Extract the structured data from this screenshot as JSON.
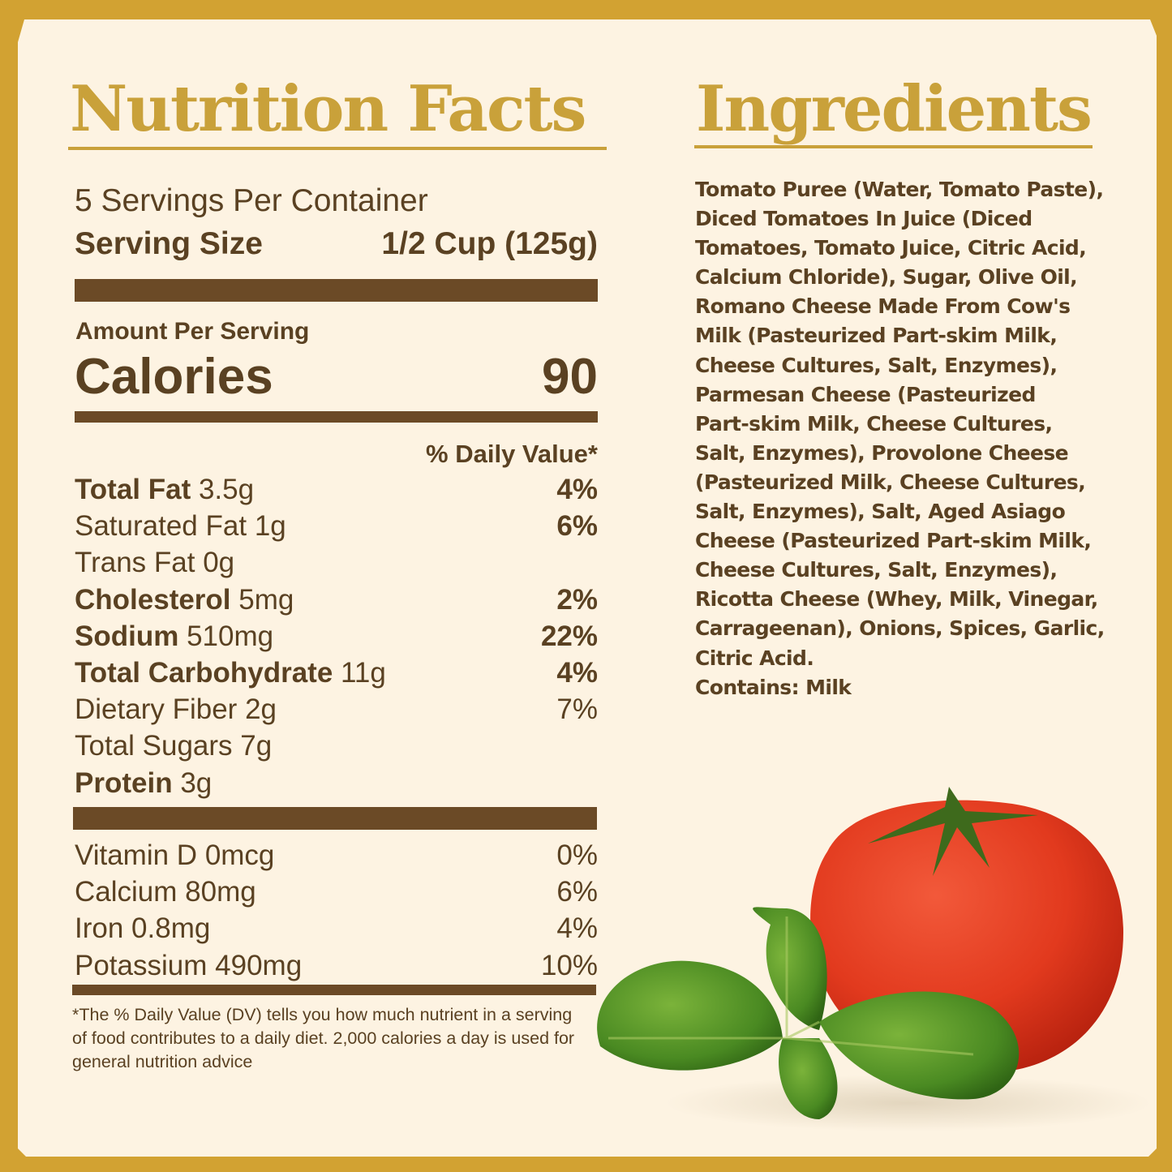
{
  "colors": {
    "frame": "#d2a232",
    "background": "#fdf3e2",
    "title": "#c9a13a",
    "text": "#5a4122",
    "bars": "#6b4a26"
  },
  "nutrition": {
    "title": "Nutrition Facts",
    "servings": "5 Servings Per Container",
    "serving_size_label": "Serving Size",
    "serving_size_value": "1/2 Cup (125g)",
    "amount_per_serving": "Amount Per Serving",
    "calories_label": "Calories",
    "calories_value": "90",
    "dv_header": "% Daily Value*",
    "rows": [
      {
        "name": "Total Fat",
        "amount": "3.5g",
        "dv": "4%",
        "bold": true
      },
      {
        "name": "Saturated Fat",
        "amount": "1g",
        "dv": "6%",
        "bold": false,
        "dv_bold": true
      },
      {
        "name": "Trans Fat",
        "amount": "0g",
        "dv": "",
        "bold": false
      },
      {
        "name": "Cholesterol",
        "amount": "5mg",
        "dv": "2%",
        "bold": true
      },
      {
        "name": "Sodium",
        "amount": "510mg",
        "dv": "22%",
        "bold": true
      },
      {
        "name": "Total Carbohydrate",
        "amount": "11g",
        "dv": "4%",
        "bold": true
      },
      {
        "name": "Dietary Fiber",
        "amount": "2g",
        "dv": "7%",
        "bold": false
      },
      {
        "name": "Total Sugars",
        "amount": "7g",
        "dv": "",
        "bold": false
      },
      {
        "name": "Protein",
        "amount": "3g",
        "dv": "",
        "bold": true
      }
    ],
    "vitamins": [
      {
        "name": "Vitamin D",
        "amount": "0mcg",
        "dv": "0%"
      },
      {
        "name": "Calcium",
        "amount": "80mg",
        "dv": "6%"
      },
      {
        "name": "Iron",
        "amount": "0.8mg",
        "dv": "4%"
      },
      {
        "name": "Potassium",
        "amount": "490mg",
        "dv": "10%"
      }
    ],
    "footnote": "*The % Daily Value (DV) tells you how much nutrient in a serving of food contributes to a daily diet. 2,000 calories a day is used for general nutrition advice"
  },
  "ingredients": {
    "title": "Ingredients",
    "lines": [
      "Tomato Puree (Water, Tomato Paste),",
      "Diced Tomatoes In Juice (Diced",
      "Tomatoes, Tomato Juice, Citric Acid,",
      "Calcium Chloride), Sugar, Olive Oil,",
      "Romano Cheese Made From Cow's",
      "Milk (Pasteurized Part-skim Milk,",
      "Cheese Cultures, Salt, Enzymes),",
      "Parmesan Cheese (Pasteurized",
      "Part-skim Milk, Cheese Cultures,",
      "Salt, Enzymes), Provolone Cheese",
      "(Pasteurized Milk, Cheese Cultures,",
      "Salt, Enzymes), Salt, Aged Asiago",
      "Cheese (Pasteurized Part-skim Milk,",
      "Cheese Cultures, Salt, Enzymes),",
      "Ricotta Cheese (Whey, Milk, Vinegar,",
      "Carrageenan), Onions, Spices, Garlic,",
      "Citric Acid."
    ],
    "contains": "Contains: Milk"
  },
  "image": {
    "subject": "tomato-with-basil"
  }
}
